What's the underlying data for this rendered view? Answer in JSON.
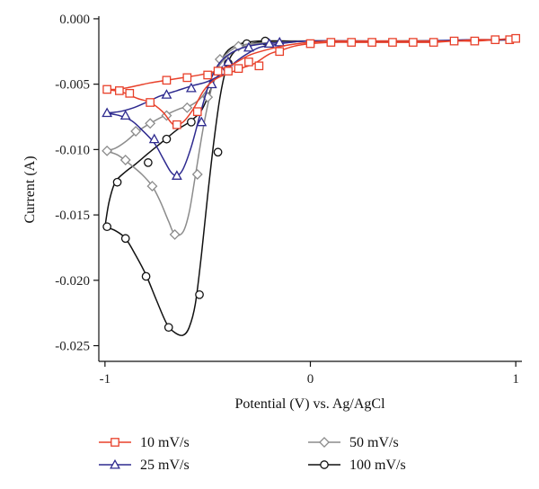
{
  "chart_data": {
    "type": "line",
    "xlabel": "Potential (V) vs. Ag/AgCl",
    "ylabel": "Current (A)",
    "xlim": [
      -1.03,
      1.03
    ],
    "ylim": [
      -0.0262,
      0.0002
    ],
    "x_ticks": [
      {
        "value": -1,
        "label": "-1"
      },
      {
        "value": 0,
        "label": "0"
      },
      {
        "value": 1,
        "label": "1"
      }
    ],
    "y_ticks": [
      {
        "value": 0,
        "label": "0.000"
      },
      {
        "value": -0.005,
        "label": "-0.005"
      },
      {
        "value": -0.01,
        "label": "-0.010"
      },
      {
        "value": -0.015,
        "label": "-0.015"
      },
      {
        "value": -0.02,
        "label": "-0.020"
      },
      {
        "value": -0.025,
        "label": "-0.025"
      }
    ],
    "grid": false,
    "legend_position": "bottom",
    "series": [
      {
        "name": "10 mV/s",
        "color": "#e8402a",
        "marker": "square",
        "lower": [
          [
            -1.0,
            -0.0054
          ],
          [
            -0.95,
            -0.0055
          ],
          [
            -0.9,
            -0.0057
          ],
          [
            -0.84,
            -0.0061
          ],
          [
            -0.78,
            -0.0064
          ],
          [
            -0.72,
            -0.0071
          ],
          [
            -0.68,
            -0.0079
          ],
          [
            -0.66,
            -0.0081
          ],
          [
            -0.62,
            -0.0079
          ],
          [
            -0.57,
            -0.0069
          ],
          [
            -0.52,
            -0.0055
          ],
          [
            -0.47,
            -0.0047
          ],
          [
            -0.42,
            -0.0043
          ],
          [
            -0.37,
            -0.004
          ],
          [
            -0.32,
            -0.0037
          ],
          [
            -0.27,
            -0.0034
          ],
          [
            -0.2,
            -0.0027
          ],
          [
            -0.14,
            -0.0024
          ],
          [
            -0.08,
            -0.0021
          ],
          [
            0.0,
            -0.0019
          ],
          [
            0.1,
            -0.0018
          ],
          [
            0.2,
            -0.0018
          ],
          [
            0.3,
            -0.0018
          ],
          [
            0.4,
            -0.0018
          ],
          [
            0.5,
            -0.0018
          ],
          [
            0.6,
            -0.0018
          ],
          [
            0.7,
            -0.0017
          ],
          [
            0.8,
            -0.0017
          ],
          [
            0.9,
            -0.0016
          ],
          [
            1.0,
            -0.0015
          ]
        ],
        "upper": [
          [
            -1.0,
            -0.0054
          ],
          [
            -0.95,
            -0.0054
          ],
          [
            -0.9,
            -0.0053
          ],
          [
            -0.84,
            -0.0051
          ],
          [
            -0.78,
            -0.0049
          ],
          [
            -0.7,
            -0.0047
          ],
          [
            -0.62,
            -0.0045
          ],
          [
            -0.54,
            -0.0043
          ],
          [
            -0.46,
            -0.004
          ],
          [
            -0.38,
            -0.0035
          ],
          [
            -0.3,
            -0.0028
          ],
          [
            -0.22,
            -0.0024
          ],
          [
            -0.14,
            -0.0021
          ],
          [
            -0.06,
            -0.0019
          ],
          [
            0.0,
            -0.0018
          ],
          [
            0.1,
            -0.0017
          ],
          [
            0.2,
            -0.0017
          ],
          [
            0.3,
            -0.0017
          ],
          [
            0.4,
            -0.0017
          ],
          [
            0.5,
            -0.0017
          ],
          [
            0.6,
            -0.0017
          ],
          [
            0.7,
            -0.0017
          ],
          [
            0.8,
            -0.0016
          ],
          [
            0.9,
            -0.0016
          ],
          [
            1.0,
            -0.0015
          ]
        ],
        "markers": [
          [
            -0.99,
            -0.0054
          ],
          [
            -0.93,
            -0.0055
          ],
          [
            -0.88,
            -0.0057
          ],
          [
            -0.78,
            -0.0064
          ],
          [
            -0.7,
            -0.0047
          ],
          [
            -0.6,
            -0.0045
          ],
          [
            -0.65,
            -0.0081
          ],
          [
            -0.55,
            -0.0071
          ],
          [
            -0.5,
            -0.0043
          ],
          [
            -0.45,
            -0.004
          ],
          [
            -0.4,
            -0.004
          ],
          [
            -0.35,
            -0.0038
          ],
          [
            -0.3,
            -0.0033
          ],
          [
            -0.25,
            -0.0036
          ],
          [
            -0.15,
            -0.0025
          ],
          [
            0.0,
            -0.0019
          ],
          [
            0.1,
            -0.0018
          ],
          [
            0.2,
            -0.0018
          ],
          [
            0.3,
            -0.0018
          ],
          [
            0.4,
            -0.0018
          ],
          [
            0.5,
            -0.0018
          ],
          [
            0.6,
            -0.0018
          ],
          [
            0.7,
            -0.0017
          ],
          [
            0.8,
            -0.0017
          ],
          [
            0.9,
            -0.0016
          ],
          [
            0.97,
            -0.0016
          ],
          [
            1.0,
            -0.0015
          ]
        ]
      },
      {
        "name": "25 mV/s",
        "color": "#2e2a8f",
        "marker": "triangle",
        "lower": [
          [
            -1.0,
            -0.0072
          ],
          [
            -0.93,
            -0.0074
          ],
          [
            -0.87,
            -0.0078
          ],
          [
            -0.82,
            -0.0085
          ],
          [
            -0.76,
            -0.0095
          ],
          [
            -0.72,
            -0.0106
          ],
          [
            -0.68,
            -0.0117
          ],
          [
            -0.65,
            -0.012
          ],
          [
            -0.62,
            -0.0115
          ],
          [
            -0.58,
            -0.0098
          ],
          [
            -0.54,
            -0.0075
          ],
          [
            -0.5,
            -0.0053
          ],
          [
            -0.46,
            -0.0038
          ],
          [
            -0.42,
            -0.003
          ],
          [
            -0.36,
            -0.0024
          ],
          [
            -0.3,
            -0.0021
          ],
          [
            -0.22,
            -0.0019
          ],
          [
            -0.12,
            -0.0018
          ],
          [
            0.0,
            -0.0017
          ],
          [
            0.2,
            -0.0017
          ],
          [
            0.5,
            -0.0017
          ],
          [
            0.8,
            -0.0016
          ],
          [
            1.0,
            -0.0016
          ]
        ],
        "upper": [
          [
            -1.0,
            -0.0072
          ],
          [
            -0.93,
            -0.0071
          ],
          [
            -0.86,
            -0.0068
          ],
          [
            -0.8,
            -0.0064
          ],
          [
            -0.73,
            -0.0059
          ],
          [
            -0.65,
            -0.0055
          ],
          [
            -0.57,
            -0.0051
          ],
          [
            -0.5,
            -0.0048
          ],
          [
            -0.43,
            -0.0042
          ],
          [
            -0.38,
            -0.0035
          ],
          [
            -0.32,
            -0.0028
          ],
          [
            -0.25,
            -0.0022
          ],
          [
            -0.18,
            -0.002
          ],
          [
            -0.1,
            -0.0018
          ],
          [
            0.0,
            -0.0017
          ],
          [
            0.3,
            -0.0017
          ],
          [
            0.6,
            -0.0017
          ],
          [
            1.0,
            -0.0016
          ]
        ],
        "markers": [
          [
            -0.99,
            -0.0072
          ],
          [
            -0.9,
            -0.0074
          ],
          [
            -0.76,
            -0.0092
          ],
          [
            -0.65,
            -0.012
          ],
          [
            -0.7,
            -0.0058
          ],
          [
            -0.58,
            -0.0053
          ],
          [
            -0.53,
            -0.0079
          ],
          [
            -0.48,
            -0.005
          ],
          [
            -0.43,
            -0.004
          ],
          [
            -0.4,
            -0.0033
          ],
          [
            -0.3,
            -0.0022
          ],
          [
            -0.2,
            -0.0019
          ],
          [
            -0.15,
            -0.0018
          ]
        ]
      },
      {
        "name": "50 mV/s",
        "color": "#8c8c8c",
        "marker": "diamond",
        "lower": [
          [
            -1.0,
            -0.0101
          ],
          [
            -0.94,
            -0.0104
          ],
          [
            -0.88,
            -0.0111
          ],
          [
            -0.82,
            -0.0119
          ],
          [
            -0.77,
            -0.0128
          ],
          [
            -0.73,
            -0.014
          ],
          [
            -0.69,
            -0.0155
          ],
          [
            -0.66,
            -0.0165
          ],
          [
            -0.62,
            -0.0163
          ],
          [
            -0.59,
            -0.0148
          ],
          [
            -0.56,
            -0.012
          ],
          [
            -0.52,
            -0.0082
          ],
          [
            -0.48,
            -0.0052
          ],
          [
            -0.45,
            -0.0036
          ],
          [
            -0.41,
            -0.0027
          ],
          [
            -0.35,
            -0.0021
          ],
          [
            -0.28,
            -0.0019
          ],
          [
            -0.15,
            -0.0018
          ],
          [
            0.0,
            -0.0017
          ],
          [
            0.5,
            -0.0017
          ],
          [
            1.0,
            -0.0016
          ]
        ],
        "upper": [
          [
            -1.0,
            -0.0101
          ],
          [
            -0.95,
            -0.0099
          ],
          [
            -0.9,
            -0.0094
          ],
          [
            -0.84,
            -0.0086
          ],
          [
            -0.78,
            -0.008
          ],
          [
            -0.71,
            -0.0074
          ],
          [
            -0.64,
            -0.0069
          ],
          [
            -0.58,
            -0.0066
          ],
          [
            -0.53,
            -0.006
          ],
          [
            -0.48,
            -0.0048
          ],
          [
            -0.44,
            -0.0035
          ],
          [
            -0.39,
            -0.0027
          ],
          [
            -0.32,
            -0.0021
          ],
          [
            -0.22,
            -0.0019
          ],
          [
            -0.1,
            -0.0018
          ],
          [
            0.0,
            -0.0017
          ],
          [
            0.5,
            -0.0017
          ],
          [
            1.0,
            -0.0016
          ]
        ],
        "markers": [
          [
            -0.99,
            -0.0101
          ],
          [
            -0.9,
            -0.0108
          ],
          [
            -0.85,
            -0.0086
          ],
          [
            -0.77,
            -0.0128
          ],
          [
            -0.78,
            -0.008
          ],
          [
            -0.7,
            -0.0074
          ],
          [
            -0.66,
            -0.0165
          ],
          [
            -0.6,
            -0.0068
          ],
          [
            -0.55,
            -0.0119
          ],
          [
            -0.5,
            -0.006
          ],
          [
            -0.47,
            -0.0044
          ],
          [
            -0.44,
            -0.0031
          ],
          [
            -0.35,
            -0.0021
          ]
        ]
      },
      {
        "name": "100 mV/s",
        "color": "#111111",
        "marker": "circle",
        "lower": [
          [
            -1.0,
            -0.0159
          ],
          [
            -0.95,
            -0.0162
          ],
          [
            -0.9,
            -0.0168
          ],
          [
            -0.85,
            -0.0181
          ],
          [
            -0.8,
            -0.0196
          ],
          [
            -0.75,
            -0.0215
          ],
          [
            -0.7,
            -0.0233
          ],
          [
            -0.66,
            -0.024
          ],
          [
            -0.62,
            -0.0242
          ],
          [
            -0.59,
            -0.0236
          ],
          [
            -0.56,
            -0.0218
          ],
          [
            -0.53,
            -0.018
          ],
          [
            -0.5,
            -0.0135
          ],
          [
            -0.47,
            -0.0094
          ],
          [
            -0.44,
            -0.006
          ],
          [
            -0.41,
            -0.0038
          ],
          [
            -0.38,
            -0.0027
          ],
          [
            -0.33,
            -0.0021
          ],
          [
            -0.25,
            -0.0018
          ],
          [
            -0.1,
            -0.0018
          ],
          [
            0.0,
            -0.0017
          ],
          [
            0.5,
            -0.0017
          ],
          [
            1.0,
            -0.0016
          ]
        ],
        "upper": [
          [
            -1.0,
            -0.0159
          ],
          [
            -0.98,
            -0.014
          ],
          [
            -0.95,
            -0.0125
          ],
          [
            -0.9,
            -0.0117
          ],
          [
            -0.85,
            -0.0111
          ],
          [
            -0.79,
            -0.0103
          ],
          [
            -0.72,
            -0.0094
          ],
          [
            -0.65,
            -0.0085
          ],
          [
            -0.59,
            -0.0079
          ],
          [
            -0.53,
            -0.007
          ],
          [
            -0.48,
            -0.0052
          ],
          [
            -0.44,
            -0.0034
          ],
          [
            -0.4,
            -0.0024
          ],
          [
            -0.34,
            -0.0019
          ],
          [
            -0.25,
            -0.0017
          ],
          [
            -0.1,
            -0.0017
          ],
          [
            0.0,
            -0.0017
          ],
          [
            0.5,
            -0.0017
          ],
          [
            1.0,
            -0.0016
          ]
        ],
        "markers": [
          [
            -0.99,
            -0.0159
          ],
          [
            -0.9,
            -0.0168
          ],
          [
            -0.94,
            -0.0125
          ],
          [
            -0.8,
            -0.0197
          ],
          [
            -0.79,
            -0.011
          ],
          [
            -0.69,
            -0.0236
          ],
          [
            -0.7,
            -0.0092
          ],
          [
            -0.54,
            -0.0211
          ],
          [
            -0.58,
            -0.0079
          ],
          [
            -0.45,
            -0.0102
          ],
          [
            -0.4,
            -0.0034
          ],
          [
            -0.31,
            -0.0019
          ],
          [
            -0.22,
            -0.0017
          ]
        ]
      }
    ]
  }
}
